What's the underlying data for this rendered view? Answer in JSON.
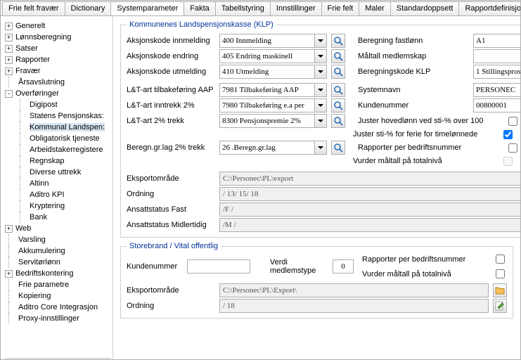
{
  "tabs": [
    "Frie felt fravær",
    "Dictionary",
    "Systemparameter",
    "Fakta",
    "Tabellstyring",
    "Innstillinger",
    "Frie felt",
    "Maler",
    "Standardoppsett",
    "Rapportdefinisjoner Altinn"
  ],
  "activeTab": 2,
  "tree": [
    {
      "t": "+",
      "l": "Generelt",
      "d": 0
    },
    {
      "t": "+",
      "l": "Lønnsberegning",
      "d": 0
    },
    {
      "t": "+",
      "l": "Satser",
      "d": 0
    },
    {
      "t": "+",
      "l": "Rapporter",
      "d": 0
    },
    {
      "t": "+",
      "l": "Fravær",
      "d": 0
    },
    {
      "t": "",
      "l": "Årsavslutning",
      "d": 0,
      "leaf": true
    },
    {
      "t": "-",
      "l": "Overføringer",
      "d": 0
    },
    {
      "t": "",
      "l": "Digipost",
      "d": 1,
      "leaf": true
    },
    {
      "t": "",
      "l": "Statens Pensjonskas:",
      "d": 1,
      "leaf": true
    },
    {
      "t": "",
      "l": "Kommunal Landspen:",
      "d": 1,
      "leaf": true,
      "sel": true
    },
    {
      "t": "",
      "l": "Obligatorisk tjeneste",
      "d": 1,
      "leaf": true
    },
    {
      "t": "",
      "l": "Arbeidstakerregistere",
      "d": 1,
      "leaf": true
    },
    {
      "t": "",
      "l": "Regnskap",
      "d": 1,
      "leaf": true
    },
    {
      "t": "",
      "l": "Diverse uttrekk",
      "d": 1,
      "leaf": true
    },
    {
      "t": "",
      "l": "Altinn",
      "d": 1,
      "leaf": true
    },
    {
      "t": "",
      "l": "Aditro KPI",
      "d": 1,
      "leaf": true
    },
    {
      "t": "",
      "l": "Kryptering",
      "d": 1,
      "leaf": true
    },
    {
      "t": "",
      "l": "Bank",
      "d": 1,
      "leaf": true
    },
    {
      "t": "+",
      "l": "Web",
      "d": 0
    },
    {
      "t": "",
      "l": "Varsling",
      "d": 0,
      "leaf": true
    },
    {
      "t": "",
      "l": "Akkumulering",
      "d": 0,
      "leaf": true
    },
    {
      "t": "",
      "l": "Servitørlønn",
      "d": 0,
      "leaf": true
    },
    {
      "t": "+",
      "l": "Bedriftskontering",
      "d": 0
    },
    {
      "t": "",
      "l": "Frie parametre",
      "d": 0,
      "leaf": true
    },
    {
      "t": "",
      "l": "Kopiering",
      "d": 0,
      "leaf": true
    },
    {
      "t": "",
      "l": "Aditro Core Integrasjon",
      "d": 0,
      "leaf": true
    },
    {
      "t": "",
      "l": "Proxy-innstillinger",
      "d": 0,
      "leaf": true
    }
  ],
  "klp": {
    "legend": "Kommunenes Landspensjonskasse (KLP)",
    "rows": [
      {
        "l": "Aksjonskode innmelding",
        "v": "400 Innmelding",
        "rl": "Beregning fastlønn",
        "rv": "A1",
        "rdd": false
      },
      {
        "l": "Aksjonskode endring",
        "v": "405 Endring maskinell",
        "rl": "Måltall medlemskap",
        "rv": "168",
        "rdd": false,
        "ralign": "right"
      },
      {
        "l": "Aksjonskode utmelding",
        "v": "410 Utmelding",
        "rl": "Beregningskode KLP",
        "rv": "1 Stillingsprosent ar",
        "rdd": true
      }
    ],
    "rows2": [
      {
        "l": "L&T-art tilbakeføring AAP",
        "v": "7981 Tilbakeføring AAP",
        "rl": "Systemnavn",
        "rv": "PERSONEC"
      },
      {
        "l": "L&T-art inntrekk 2%",
        "v": "7980 Tilbakeføring e.a per",
        "rl": "Kundenummer",
        "rv": "00800001"
      },
      {
        "l": "L&T-art 2% trekk",
        "v": "8300 Pensjonspremie 2%",
        "check": {
          "label": "Juster hovedlønn ved sti-% over 100",
          "c": false
        }
      },
      {
        "l": "",
        "v": "",
        "check": {
          "label": "Juster sti-% for ferie for timelønnede",
          "c": true
        }
      },
      {
        "l": "Beregn.gr.lag 2% trekk",
        "v": "26 .Beregn.gr.lag",
        "check": {
          "label": "Rapporter per bedriftsnummer",
          "c": false
        }
      },
      {
        "l": "",
        "v": "",
        "check": {
          "label": "Vurder måltall på totalnivå",
          "c": false,
          "dis": true
        }
      }
    ],
    "wide": [
      {
        "l": "Eksportområde",
        "v": "C:\\Personec\\PL\\export",
        "ico": "folder"
      },
      {
        "l": "Ordning",
        "v": "/ 13/ 15/ 18",
        "ico": "edit"
      },
      {
        "l": "Ansattstatus Fast",
        "v": "/F /",
        "ico": "edit"
      },
      {
        "l": "Ansattstatus Midlertidig",
        "v": "/M /",
        "ico": "edit"
      }
    ]
  },
  "sb": {
    "legend": "Storebrand / Vital offentlig",
    "kunde_l": "Kundenummer",
    "kunde_v": "",
    "verdi_l": "Verdi medlemstype",
    "verdi_v": "0",
    "checks": [
      {
        "label": "Rapporter per bedriftsnummer",
        "c": false
      },
      {
        "label": "Vurder måltall på totalnivå",
        "c": false
      }
    ],
    "wide": [
      {
        "l": "Eksportområde",
        "v": "C:\\Personec\\PL\\Export\\",
        "ico": "folder"
      },
      {
        "l": "Ordning",
        "v": "/ 18",
        "ico": "edit"
      }
    ]
  }
}
